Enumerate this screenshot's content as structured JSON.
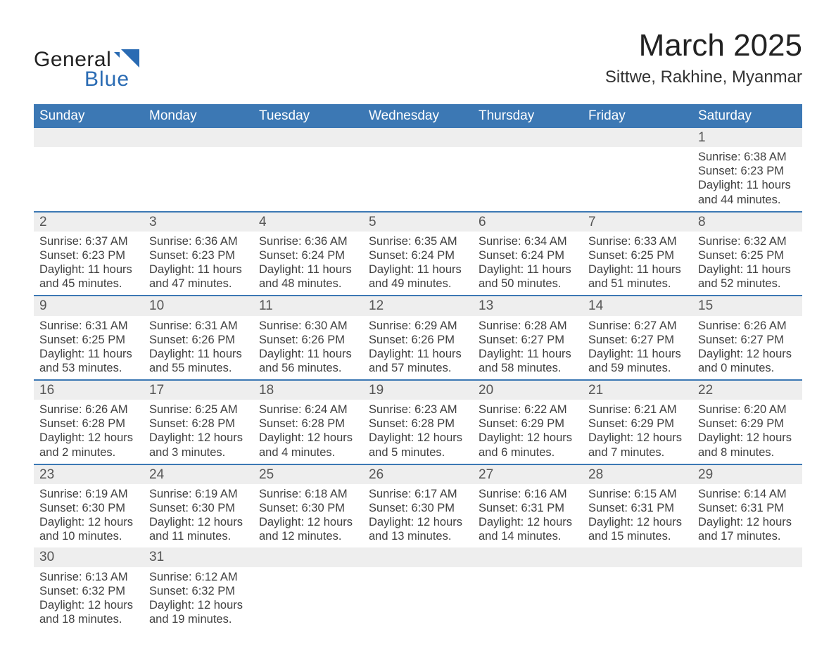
{
  "logo": {
    "general": "General",
    "blue": "Blue"
  },
  "title": "March 2025",
  "location": "Sittwe, Rakhine, Myanmar",
  "colors": {
    "header_bg": "#3c78b4",
    "header_text": "#ffffff",
    "row_separator": "#3c78b4",
    "daynum_bg": "#eeeeee",
    "body_text": "#404040",
    "logo_blue": "#2a6bb3",
    "background": "#ffffff"
  },
  "typography": {
    "title_fontsize": 44,
    "location_fontsize": 24,
    "header_fontsize": 19,
    "daynum_fontsize": 19,
    "detail_fontsize": 16.5,
    "font_family": "Arial"
  },
  "table": {
    "type": "calendar",
    "columns": [
      "Sunday",
      "Monday",
      "Tuesday",
      "Wednesday",
      "Thursday",
      "Friday",
      "Saturday"
    ],
    "weeks": [
      [
        null,
        null,
        null,
        null,
        null,
        null,
        {
          "day": "1",
          "sunrise": "Sunrise: 6:38 AM",
          "sunset": "Sunset: 6:23 PM",
          "daylight1": "Daylight: 11 hours",
          "daylight2": "and 44 minutes."
        }
      ],
      [
        {
          "day": "2",
          "sunrise": "Sunrise: 6:37 AM",
          "sunset": "Sunset: 6:23 PM",
          "daylight1": "Daylight: 11 hours",
          "daylight2": "and 45 minutes."
        },
        {
          "day": "3",
          "sunrise": "Sunrise: 6:36 AM",
          "sunset": "Sunset: 6:23 PM",
          "daylight1": "Daylight: 11 hours",
          "daylight2": "and 47 minutes."
        },
        {
          "day": "4",
          "sunrise": "Sunrise: 6:36 AM",
          "sunset": "Sunset: 6:24 PM",
          "daylight1": "Daylight: 11 hours",
          "daylight2": "and 48 minutes."
        },
        {
          "day": "5",
          "sunrise": "Sunrise: 6:35 AM",
          "sunset": "Sunset: 6:24 PM",
          "daylight1": "Daylight: 11 hours",
          "daylight2": "and 49 minutes."
        },
        {
          "day": "6",
          "sunrise": "Sunrise: 6:34 AM",
          "sunset": "Sunset: 6:24 PM",
          "daylight1": "Daylight: 11 hours",
          "daylight2": "and 50 minutes."
        },
        {
          "day": "7",
          "sunrise": "Sunrise: 6:33 AM",
          "sunset": "Sunset: 6:25 PM",
          "daylight1": "Daylight: 11 hours",
          "daylight2": "and 51 minutes."
        },
        {
          "day": "8",
          "sunrise": "Sunrise: 6:32 AM",
          "sunset": "Sunset: 6:25 PM",
          "daylight1": "Daylight: 11 hours",
          "daylight2": "and 52 minutes."
        }
      ],
      [
        {
          "day": "9",
          "sunrise": "Sunrise: 6:31 AM",
          "sunset": "Sunset: 6:25 PM",
          "daylight1": "Daylight: 11 hours",
          "daylight2": "and 53 minutes."
        },
        {
          "day": "10",
          "sunrise": "Sunrise: 6:31 AM",
          "sunset": "Sunset: 6:26 PM",
          "daylight1": "Daylight: 11 hours",
          "daylight2": "and 55 minutes."
        },
        {
          "day": "11",
          "sunrise": "Sunrise: 6:30 AM",
          "sunset": "Sunset: 6:26 PM",
          "daylight1": "Daylight: 11 hours",
          "daylight2": "and 56 minutes."
        },
        {
          "day": "12",
          "sunrise": "Sunrise: 6:29 AM",
          "sunset": "Sunset: 6:26 PM",
          "daylight1": "Daylight: 11 hours",
          "daylight2": "and 57 minutes."
        },
        {
          "day": "13",
          "sunrise": "Sunrise: 6:28 AM",
          "sunset": "Sunset: 6:27 PM",
          "daylight1": "Daylight: 11 hours",
          "daylight2": "and 58 minutes."
        },
        {
          "day": "14",
          "sunrise": "Sunrise: 6:27 AM",
          "sunset": "Sunset: 6:27 PM",
          "daylight1": "Daylight: 11 hours",
          "daylight2": "and 59 minutes."
        },
        {
          "day": "15",
          "sunrise": "Sunrise: 6:26 AM",
          "sunset": "Sunset: 6:27 PM",
          "daylight1": "Daylight: 12 hours",
          "daylight2": "and 0 minutes."
        }
      ],
      [
        {
          "day": "16",
          "sunrise": "Sunrise: 6:26 AM",
          "sunset": "Sunset: 6:28 PM",
          "daylight1": "Daylight: 12 hours",
          "daylight2": "and 2 minutes."
        },
        {
          "day": "17",
          "sunrise": "Sunrise: 6:25 AM",
          "sunset": "Sunset: 6:28 PM",
          "daylight1": "Daylight: 12 hours",
          "daylight2": "and 3 minutes."
        },
        {
          "day": "18",
          "sunrise": "Sunrise: 6:24 AM",
          "sunset": "Sunset: 6:28 PM",
          "daylight1": "Daylight: 12 hours",
          "daylight2": "and 4 minutes."
        },
        {
          "day": "19",
          "sunrise": "Sunrise: 6:23 AM",
          "sunset": "Sunset: 6:28 PM",
          "daylight1": "Daylight: 12 hours",
          "daylight2": "and 5 minutes."
        },
        {
          "day": "20",
          "sunrise": "Sunrise: 6:22 AM",
          "sunset": "Sunset: 6:29 PM",
          "daylight1": "Daylight: 12 hours",
          "daylight2": "and 6 minutes."
        },
        {
          "day": "21",
          "sunrise": "Sunrise: 6:21 AM",
          "sunset": "Sunset: 6:29 PM",
          "daylight1": "Daylight: 12 hours",
          "daylight2": "and 7 minutes."
        },
        {
          "day": "22",
          "sunrise": "Sunrise: 6:20 AM",
          "sunset": "Sunset: 6:29 PM",
          "daylight1": "Daylight: 12 hours",
          "daylight2": "and 8 minutes."
        }
      ],
      [
        {
          "day": "23",
          "sunrise": "Sunrise: 6:19 AM",
          "sunset": "Sunset: 6:30 PM",
          "daylight1": "Daylight: 12 hours",
          "daylight2": "and 10 minutes."
        },
        {
          "day": "24",
          "sunrise": "Sunrise: 6:19 AM",
          "sunset": "Sunset: 6:30 PM",
          "daylight1": "Daylight: 12 hours",
          "daylight2": "and 11 minutes."
        },
        {
          "day": "25",
          "sunrise": "Sunrise: 6:18 AM",
          "sunset": "Sunset: 6:30 PM",
          "daylight1": "Daylight: 12 hours",
          "daylight2": "and 12 minutes."
        },
        {
          "day": "26",
          "sunrise": "Sunrise: 6:17 AM",
          "sunset": "Sunset: 6:30 PM",
          "daylight1": "Daylight: 12 hours",
          "daylight2": "and 13 minutes."
        },
        {
          "day": "27",
          "sunrise": "Sunrise: 6:16 AM",
          "sunset": "Sunset: 6:31 PM",
          "daylight1": "Daylight: 12 hours",
          "daylight2": "and 14 minutes."
        },
        {
          "day": "28",
          "sunrise": "Sunrise: 6:15 AM",
          "sunset": "Sunset: 6:31 PM",
          "daylight1": "Daylight: 12 hours",
          "daylight2": "and 15 minutes."
        },
        {
          "day": "29",
          "sunrise": "Sunrise: 6:14 AM",
          "sunset": "Sunset: 6:31 PM",
          "daylight1": "Daylight: 12 hours",
          "daylight2": "and 17 minutes."
        }
      ],
      [
        {
          "day": "30",
          "sunrise": "Sunrise: 6:13 AM",
          "sunset": "Sunset: 6:32 PM",
          "daylight1": "Daylight: 12 hours",
          "daylight2": "and 18 minutes."
        },
        {
          "day": "31",
          "sunrise": "Sunrise: 6:12 AM",
          "sunset": "Sunset: 6:32 PM",
          "daylight1": "Daylight: 12 hours",
          "daylight2": "and 19 minutes."
        },
        null,
        null,
        null,
        null,
        null
      ]
    ]
  }
}
